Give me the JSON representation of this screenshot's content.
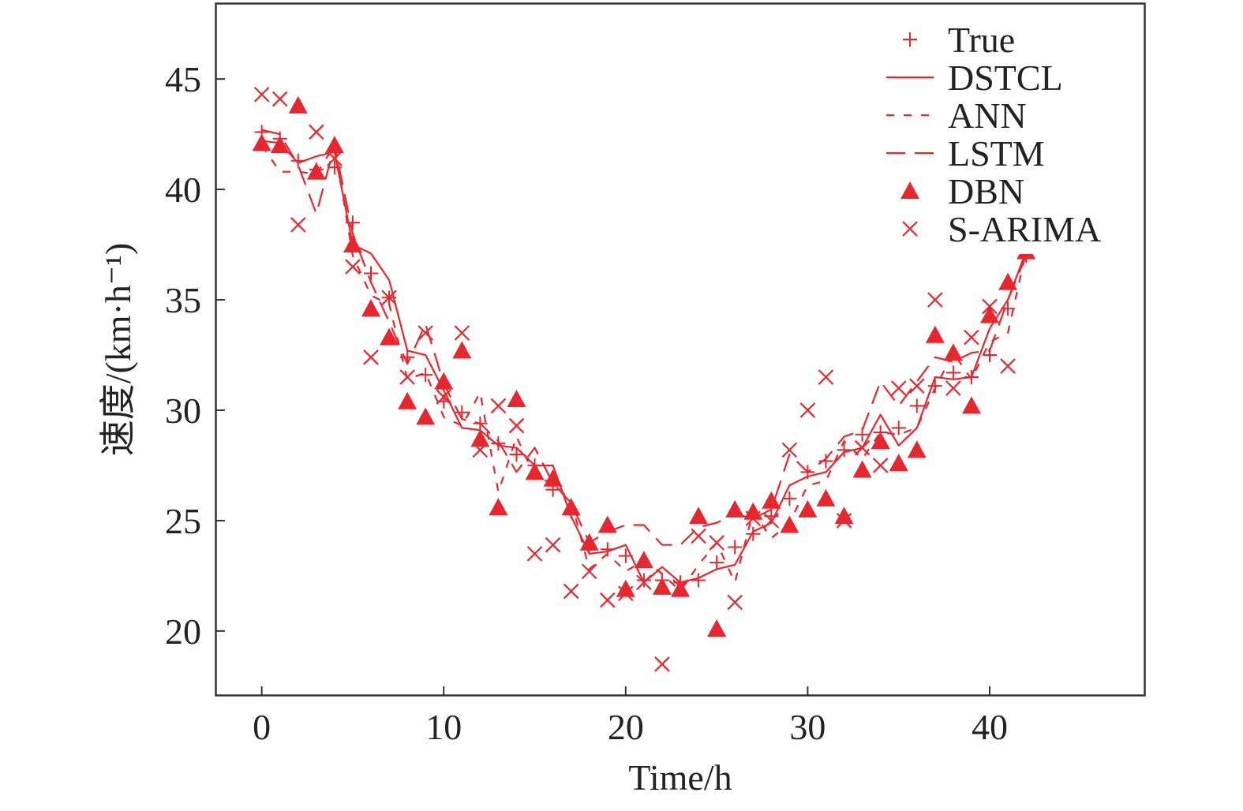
{
  "chart_data": {
    "type": "line",
    "xlabel": "Time/h",
    "ylabel": "速度/(km·h⁻¹)",
    "xlim": [
      -2.5,
      48.5
    ],
    "ylim": [
      17.1,
      48.4
    ],
    "xticks": [
      0,
      10,
      20,
      30,
      40
    ],
    "yticks": [
      20,
      25,
      30,
      35,
      40,
      45
    ],
    "legend_position": "top-right",
    "colors": {
      "series": "#e8262d",
      "axis": "#333333"
    },
    "grid": false,
    "x": [
      0,
      1,
      2,
      3,
      4,
      5,
      6,
      7,
      8,
      9,
      10,
      11,
      12,
      13,
      14,
      15,
      16,
      17,
      18,
      19,
      20,
      21,
      22,
      23,
      24,
      25,
      26,
      27,
      28,
      29,
      30,
      31,
      32,
      33,
      34,
      35,
      36,
      37,
      38,
      39,
      40,
      41,
      42
    ],
    "series": [
      {
        "name": "True",
        "style": "plus",
        "values": [
          42.6,
          42.3,
          41.3,
          40.9,
          41.0,
          38.5,
          36.2,
          35.1,
          32.4,
          31.6,
          30.4,
          29.9,
          29.4,
          28.5,
          28.0,
          27.5,
          26.4,
          25.4,
          23.8,
          23.7,
          23.4,
          22.3,
          22.3,
          22.2,
          22.3,
          23.1,
          23.8,
          24.4,
          25.2,
          26.0,
          27.2,
          27.7,
          28.2,
          28.9,
          29.0,
          29.2,
          30.2,
          31.1,
          31.7,
          31.5,
          32.5,
          34.6,
          37.0
        ]
      },
      {
        "name": "DSTCL",
        "style": "solid",
        "values": [
          42.2,
          42.1,
          41.2,
          41.5,
          41.7,
          37.5,
          37.1,
          35.9,
          32.7,
          32.5,
          30.9,
          29.2,
          29.1,
          28.4,
          28.3,
          27.5,
          27.5,
          25.2,
          23.5,
          23.6,
          23.9,
          22.2,
          22.9,
          22.2,
          22.4,
          22.8,
          23.0,
          24.5,
          24.9,
          26.6,
          27.0,
          27.2,
          28.1,
          28.3,
          29.8,
          28.4,
          29.2,
          31.5,
          31.4,
          31.5,
          33.7,
          35.0,
          37.2
        ]
      },
      {
        "name": "ANN",
        "style": "dash-short",
        "values": [
          42.0,
          40.8,
          40.8,
          40.7,
          42.0,
          37.0,
          35.2,
          34.8,
          31.4,
          31.7,
          29.7,
          29.3,
          30.8,
          26.3,
          28.8,
          27.0,
          26.7,
          25.9,
          22.8,
          23.5,
          22.7,
          23.2,
          22.6,
          21.8,
          23.0,
          24.0,
          22.2,
          25.4,
          24.2,
          24.9,
          26.6,
          26.8,
          28.6,
          27.8,
          29.0,
          28.9,
          29.2,
          31.0,
          32.6,
          31.4,
          33.1,
          33.5,
          37.2
        ]
      },
      {
        "name": "LSTM",
        "style": "dash-long",
        "values": [
          42.7,
          42.5,
          41.1,
          38.9,
          42.0,
          38.0,
          35.8,
          34.0,
          32.1,
          33.9,
          31.2,
          29.6,
          29.4,
          28.6,
          27.2,
          28.3,
          26.7,
          25.8,
          24.0,
          24.5,
          24.8,
          24.8,
          23.9,
          23.9,
          24.7,
          24.9,
          25.3,
          25.1,
          25.5,
          28.0,
          27.2,
          27.8,
          28.8,
          29.1,
          31.3,
          30.2,
          31.3,
          32.4,
          32.2,
          32.6,
          32.7,
          35.0,
          37.0
        ]
      },
      {
        "name": "DBN",
        "style": "triangle",
        "values": [
          42.1,
          42.0,
          43.8,
          40.8,
          42.0,
          37.5,
          34.6,
          33.3,
          30.4,
          29.7,
          31.3,
          32.7,
          28.7,
          25.6,
          30.5,
          27.2,
          26.9,
          25.6,
          24.0,
          24.8,
          21.9,
          23.2,
          22.0,
          21.9,
          25.2,
          20.1,
          25.5,
          25.4,
          25.9,
          24.8,
          25.5,
          26.0,
          25.2,
          27.3,
          28.6,
          27.6,
          28.2,
          33.4,
          32.6,
          30.2,
          34.3,
          35.8,
          37.2
        ]
      },
      {
        "name": "S-ARIMA",
        "style": "cross",
        "values": [
          44.3,
          44.1,
          38.4,
          42.6,
          41.4,
          36.5,
          32.4,
          35.1,
          31.5,
          33.5,
          30.6,
          33.5,
          28.2,
          30.2,
          29.3,
          23.5,
          23.9,
          21.8,
          22.7,
          21.4,
          21.7,
          22.2,
          18.5,
          22.0,
          24.3,
          24.0,
          21.3,
          25.1,
          25.0,
          28.2,
          30.0,
          31.5,
          25.0,
          28.3,
          27.5,
          31.0,
          31.1,
          35.0,
          31.0,
          33.3,
          34.7,
          32.0,
          37.2
        ]
      }
    ]
  }
}
